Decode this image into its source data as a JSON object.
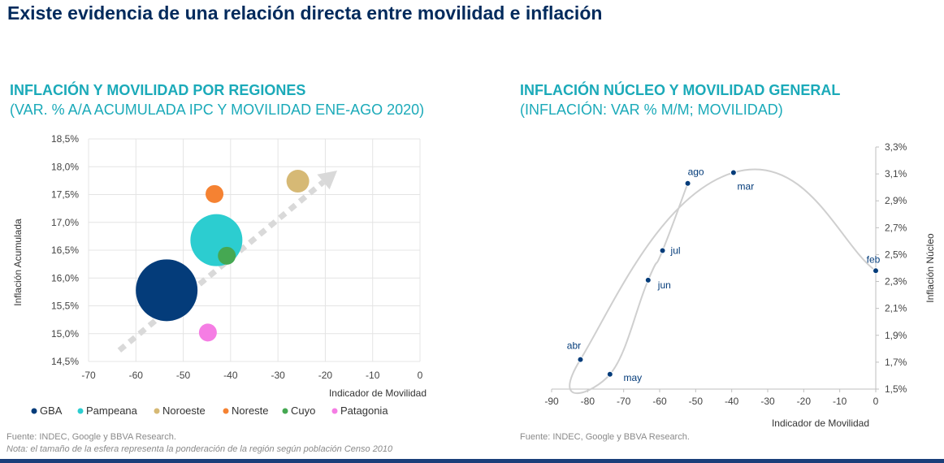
{
  "page": {
    "title": "Existe evidencia de una relación directa entre movilidad e inflación"
  },
  "left": {
    "title": "INFLACIÓN Y MOVILIDAD POR REGIONES",
    "subtitle": "(VAR. % A/A ACUMULADA IPC Y MOVILIDAD ENE-AGO 2020)",
    "source": "Fuente: INDEC, Google y BBVA Research.",
    "note": "Nota: el tamaño de la esfera representa la ponderación de la región según población Censo 2010"
  },
  "right": {
    "title": "INFLACIÓN NÚCLEO Y MOVILIDAD GENERAL",
    "subtitle": "(INFLACIÓN: VAR % M/M; MOVILIDAD)",
    "source": "Fuente: INDEC, Google y BBVA Research."
  },
  "chart_data": [
    {
      "type": "scatter",
      "variant": "bubble",
      "xlabel": "Indicador de Movilidad",
      "ylabel": "Inflación Acumulada",
      "xlim": [
        -70,
        0
      ],
      "ylim": [
        14.5,
        18.5
      ],
      "x_ticks": [
        "-70",
        "-60",
        "-50",
        "-40",
        "-30",
        "-20",
        "-10",
        "0"
      ],
      "y_ticks": [
        "14,5%",
        "15,0%",
        "15,5%",
        "16,0%",
        "16,5%",
        "17,0%",
        "17,5%",
        "18,0%",
        "18,5%"
      ],
      "grid": true,
      "legend_position": "bottom",
      "trend_arrow": {
        "from": [
          -63.5,
          14.7
        ],
        "to": [
          -17.5,
          17.93
        ],
        "color": "#d9d9d9"
      },
      "series": [
        {
          "name": "GBA",
          "x": -53.5,
          "y": 15.78,
          "size": 38,
          "color": "#043c7a"
        },
        {
          "name": "Pampeana",
          "x": -43,
          "y": 16.68,
          "size": 32,
          "color": "#2ccdd0"
        },
        {
          "name": "Noroeste",
          "x": -25.8,
          "y": 17.74,
          "size": 14,
          "color": "#d6b975"
        },
        {
          "name": "Noreste",
          "x": -43.4,
          "y": 17.51,
          "size": 11,
          "color": "#f58232"
        },
        {
          "name": "Cuyo",
          "x": -40.8,
          "y": 16.4,
          "size": 11,
          "color": "#45a852"
        },
        {
          "name": "Patagonia",
          "x": -44.8,
          "y": 15.02,
          "size": 11,
          "color": "#f57de4"
        }
      ]
    },
    {
      "type": "line",
      "xlabel": "Indicador de Movilidad",
      "ylabel": "Inflación Núcleo",
      "xlim": [
        -90,
        0
      ],
      "ylim": [
        1.5,
        3.3
      ],
      "x_ticks": [
        "-90",
        "-80",
        "-70",
        "-60",
        "-50",
        "-40",
        "-30",
        "-20",
        "-10",
        "0"
      ],
      "y_ticks": [
        "1,5%",
        "1,7%",
        "1,9%",
        "2,1%",
        "2,3%",
        "2,5%",
        "2,7%",
        "2,9%",
        "3,1%",
        "3,3%"
      ],
      "grid": false,
      "series": [
        {
          "points": [
            {
              "label": "feb",
              "x": 0,
              "y": 2.38
            },
            {
              "label": "mar",
              "x": -39.5,
              "y": 3.11
            },
            {
              "label": "abr",
              "x": -82,
              "y": 1.72
            },
            {
              "label": "may",
              "x": -73.8,
              "y": 1.61
            },
            {
              "label": "jun",
              "x": -63.2,
              "y": 2.31
            },
            {
              "label": "jul",
              "x": -59.2,
              "y": 2.53
            },
            {
              "label": "ago",
              "x": -52.2,
              "y": 3.03
            }
          ],
          "color": "#043c7a",
          "line_color": "#cfcfcf"
        }
      ]
    }
  ]
}
